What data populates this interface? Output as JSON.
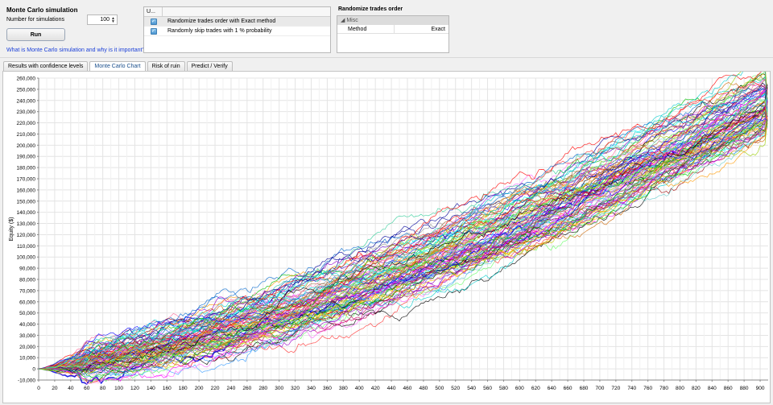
{
  "controls": {
    "title": "Monte Carlo simulation",
    "num_label": "Number for simulations",
    "num_value": "100",
    "run_label": "Run",
    "help_link": "What is Monte Carlo simulation and why is it important?"
  },
  "options": {
    "header": "U...",
    "rows": [
      {
        "checked": true,
        "label": "Randomize trades order with Exact method"
      },
      {
        "checked": true,
        "label": "Randomly skip trades with 1 % probability"
      }
    ]
  },
  "randomize": {
    "title": "Randomize trades order",
    "category": "Misc",
    "property_name": "Method",
    "property_value": "Exact"
  },
  "tabs": [
    {
      "label": "Results with confidence levels",
      "active": false
    },
    {
      "label": "Monte Carlo Chart",
      "active": true
    },
    {
      "label": "Risk of ruin",
      "active": false
    },
    {
      "label": "Predict / Verify",
      "active": false
    }
  ],
  "chart_data": {
    "type": "line",
    "title": "",
    "xlabel": "",
    "ylabel": "Equity ($)",
    "xlim": [
      0,
      910
    ],
    "ylim": [
      -10000,
      260000
    ],
    "x_ticks": [
      0,
      20,
      40,
      60,
      80,
      100,
      120,
      140,
      160,
      180,
      200,
      220,
      240,
      260,
      280,
      300,
      320,
      340,
      360,
      380,
      400,
      420,
      440,
      460,
      480,
      500,
      520,
      540,
      560,
      580,
      600,
      620,
      640,
      660,
      680,
      700,
      720,
      740,
      760,
      780,
      800,
      820,
      840,
      860,
      880,
      900
    ],
    "y_ticks": [
      -10000,
      0,
      10000,
      20000,
      30000,
      40000,
      50000,
      60000,
      70000,
      80000,
      90000,
      100000,
      110000,
      120000,
      130000,
      140000,
      150000,
      160000,
      170000,
      180000,
      190000,
      200000,
      210000,
      220000,
      230000,
      240000,
      250000,
      260000
    ],
    "y_tick_labels": [
      "-10,000",
      "0",
      "10,000",
      "20,000",
      "30,000",
      "40,000",
      "50,000",
      "60,000",
      "70,000",
      "80,000",
      "90,000",
      "100,000",
      "110,000",
      "120,000",
      "130,000",
      "140,000",
      "150,000",
      "160,000",
      "170,000",
      "180,000",
      "190,000",
      "200,000",
      "210,000",
      "220,000",
      "230,000",
      "240,000",
      "250,000",
      "260,000"
    ],
    "grid": true,
    "series_count": 100,
    "x_end": 910,
    "end_value_range": [
      215000,
      255000
    ],
    "series_colors": [
      "#0000ff",
      "#ff0000",
      "#00c000",
      "#000000",
      "#ff00ff",
      "#00cccc",
      "#ff9900",
      "#9900cc",
      "#996633",
      "#66ff66",
      "#ff6699",
      "#3399ff",
      "#cccc00",
      "#ff66ff",
      "#000099",
      "#990000",
      "#009900",
      "#6666ff",
      "#ff3333",
      "#33cc99",
      "#ffcc00",
      "#999999",
      "#cc6600",
      "#00ffff",
      "#ff99cc",
      "#6600cc",
      "#99cc00",
      "#0066cc",
      "#cc0066",
      "#66cccc"
    ],
    "highlight_series_color": "#0000e0"
  }
}
